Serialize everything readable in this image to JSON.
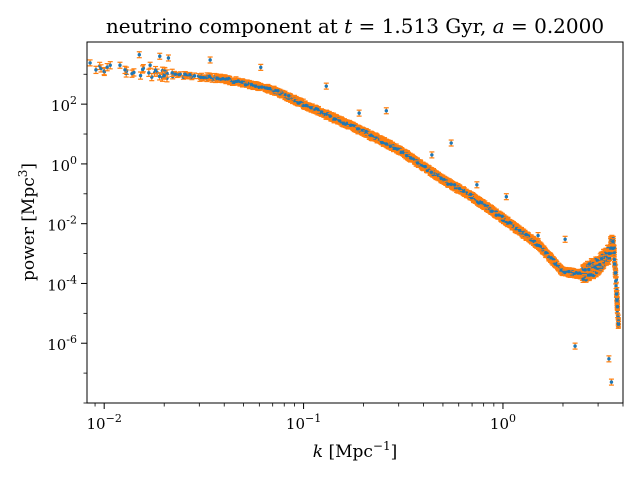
{
  "chart_data": {
    "type": "scatter",
    "title": {
      "prefix": "neutrino component at ",
      "t_symbol": "t",
      "equals": " = ",
      "t_value": "1.513",
      "t_unit": " Gyr",
      "separator": ", ",
      "a_symbol": "a",
      "a_value": "0.2000"
    },
    "xlabel": {
      "symbol": "k",
      "unit_open": " [Mpc",
      "unit_exp": "−1",
      "unit_close": "]"
    },
    "ylabel": {
      "text": "power [Mpc",
      "unit_exp": "3",
      "unit_close": "]"
    },
    "x_scale": "log",
    "y_scale": "log",
    "xlim": [
      0.0082,
      4.0
    ],
    "ylim": [
      1e-08,
      12000
    ],
    "grid": false,
    "x_ticks": [
      {
        "value": 0.01,
        "base": "10",
        "exp": "−2"
      },
      {
        "value": 0.1,
        "base": "10",
        "exp": "−1"
      },
      {
        "value": 1,
        "base": "10",
        "exp": "0"
      }
    ],
    "y_ticks": [
      {
        "value": 1e-06,
        "base": "10",
        "exp": "-6"
      },
      {
        "value": 0.0001,
        "base": "10",
        "exp": "-4"
      },
      {
        "value": 0.01,
        "base": "10",
        "exp": "-2"
      },
      {
        "value": 1,
        "base": "10",
        "exp": "0"
      },
      {
        "value": 100,
        "base": "10",
        "exp": "2"
      }
    ],
    "colors": {
      "points": "#1f77b4",
      "error_bars": "#ff7f0e"
    },
    "series_trend": {
      "x": [
        0.0083,
        0.01,
        0.02,
        0.04,
        0.07,
        0.1,
        0.2,
        0.3,
        0.5,
        0.7,
        1.0,
        1.5,
        2.0,
        2.5,
        3.0,
        3.4,
        3.55,
        3.62,
        3.7,
        3.8
      ],
      "y": [
        1800,
        1600,
        1000,
        700,
        300,
        100,
        12,
        3,
        0.3,
        0.08,
        0.015,
        0.002,
        0.00025,
        0.0002,
        0.0004,
        0.001,
        0.003,
        0.001,
        0.0001,
        3e-06
      ]
    },
    "outliers": [
      {
        "x": 0.0085,
        "y": 2400
      },
      {
        "x": 0.012,
        "y": 2000
      },
      {
        "x": 0.015,
        "y": 4500
      },
      {
        "x": 0.017,
        "y": 2000
      },
      {
        "x": 0.019,
        "y": 4000
      },
      {
        "x": 0.021,
        "y": 3500
      },
      {
        "x": 0.034,
        "y": 3000
      },
      {
        "x": 0.061,
        "y": 1700
      },
      {
        "x": 0.13,
        "y": 400
      },
      {
        "x": 0.19,
        "y": 50
      },
      {
        "x": 0.26,
        "y": 60
      },
      {
        "x": 0.44,
        "y": 2
      },
      {
        "x": 0.55,
        "y": 5
      },
      {
        "x": 0.74,
        "y": 0.2
      },
      {
        "x": 1.04,
        "y": 0.08
      },
      {
        "x": 1.5,
        "y": 0.004
      },
      {
        "x": 2.05,
        "y": 0.003
      },
      {
        "x": 2.3,
        "y": 8e-07
      },
      {
        "x": 3.4,
        "y": 3e-07
      },
      {
        "x": 3.5,
        "y": 5e-08
      }
    ]
  }
}
